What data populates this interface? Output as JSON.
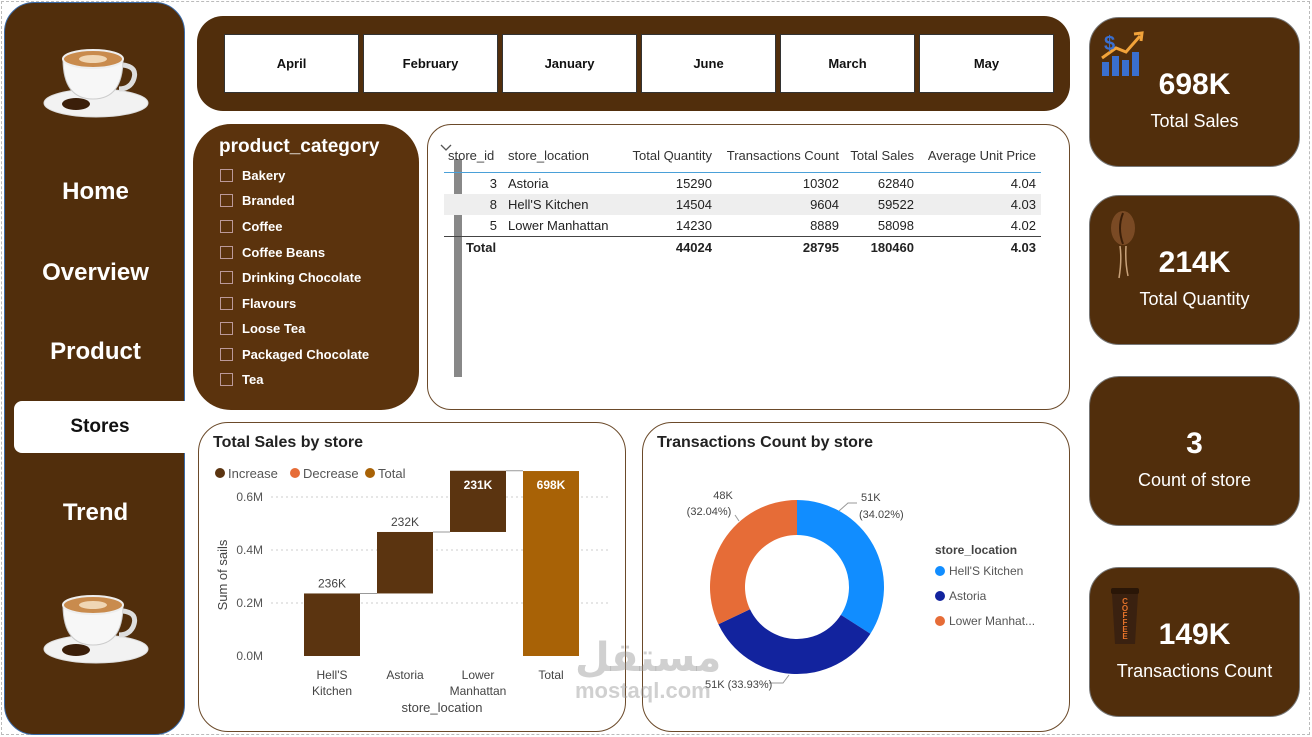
{
  "nav": {
    "items": [
      {
        "label": "Home"
      },
      {
        "label": "Overview"
      },
      {
        "label": "Product"
      },
      {
        "label": "Stores"
      },
      {
        "label": "Trend"
      }
    ]
  },
  "months": [
    "April",
    "February",
    "January",
    "June",
    "March",
    "May"
  ],
  "category_slicer": {
    "title": "product_category",
    "items": [
      "Bakery",
      "Branded",
      "Coffee",
      "Coffee Beans",
      "Drinking Chocolate",
      "Flavours",
      "Loose Tea",
      "Packaged Chocolate",
      "Tea"
    ]
  },
  "table": {
    "headers": [
      "store_id",
      "store_location",
      "Total Quantity",
      "Transactions Count",
      "Total Sales",
      "Average Unit Price"
    ],
    "rows": [
      [
        "3",
        "Astoria",
        "15290",
        "10302",
        "62840",
        "4.04"
      ],
      [
        "8",
        "Hell'S Kitchen",
        "14504",
        "9604",
        "59522",
        "4.03"
      ],
      [
        "5",
        "Lower Manhattan",
        "14230",
        "8889",
        "58098",
        "4.02"
      ]
    ],
    "total": [
      "Total",
      "44024",
      "28795",
      "180460",
      "4.03"
    ]
  },
  "kpis": [
    {
      "value": "698K",
      "label": "Total Sales"
    },
    {
      "value": "214K",
      "label": "Total Quantity"
    },
    {
      "value": "3",
      "label": "Count of store"
    },
    {
      "value": "149K",
      "label": "Transactions Count"
    }
  ],
  "kpi_icon_text": "COFFEE",
  "colors": {
    "brown": "#512e0c",
    "increase": "#5b3410",
    "total": "#a86206",
    "blue_light": "#118dff",
    "blue_dark": "#12239e",
    "orange": "#e66c37"
  },
  "chart_data": [
    {
      "type": "waterfall",
      "title": "Total Sales by store",
      "legend": [
        "Increase",
        "Decrease",
        "Total"
      ],
      "categories": [
        "Hell'S\nKitchen",
        "Astoria",
        "Lower\nManhattan",
        "Total"
      ],
      "category_labels": [
        [
          "Hell'S",
          "Kitchen"
        ],
        [
          "Astoria"
        ],
        [
          "Lower",
          "Manhattan"
        ],
        [
          "Total"
        ]
      ],
      "values": [
        236,
        232,
        231,
        698
      ],
      "data_labels": [
        "236K",
        "232K",
        "231K",
        "698K"
      ],
      "yticks": [
        "0.0M",
        "0.2M",
        "0.4M",
        "0.6M"
      ],
      "ytick_values": [
        0,
        200,
        400,
        600
      ],
      "ylim": [
        0,
        720
      ],
      "ylabel": "Sum of sails",
      "xlabel": "store_location"
    },
    {
      "type": "donut",
      "title": "Transactions Count by store",
      "legend_title": "store_location",
      "legend": [
        "Hell'S Kitchen",
        "Astoria",
        "Lower Manhat..."
      ],
      "values": [
        34.02,
        33.93,
        32.04
      ],
      "labels": [
        [
          "51K",
          "(34.02%)"
        ],
        [
          "51K (33.93%)"
        ],
        [
          "48K",
          "(32.04%)"
        ]
      ]
    }
  ],
  "watermark": {
    "arabic": "مستقل",
    "latin": "mostaql.com"
  }
}
